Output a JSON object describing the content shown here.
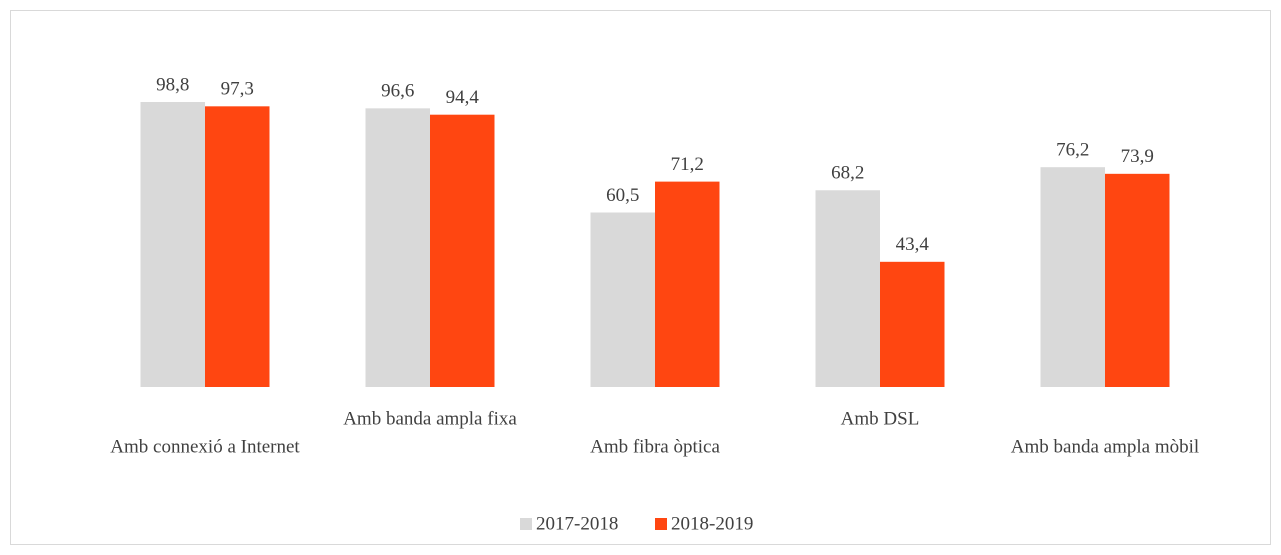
{
  "chart_data": {
    "type": "bar",
    "categories": [
      "Amb connexió a Internet",
      "Amb banda ampla fixa",
      "Amb fibra òptica",
      "Amb DSL",
      "Amb banda ampla mòbil"
    ],
    "series": [
      {
        "name": "2017-2018",
        "color": "#d9d9d9",
        "values": [
          98.8,
          96.6,
          60.5,
          68.2,
          76.2
        ],
        "value_labels": [
          "98,8",
          "96,6",
          "60,5",
          "68,2",
          "76,2"
        ]
      },
      {
        "name": "2018-2019",
        "color": "#ff4611",
        "values": [
          97.3,
          94.4,
          71.2,
          43.4,
          73.9
        ],
        "value_labels": [
          "97,3",
          "94,4",
          "71,2",
          "43,4",
          "73,9"
        ]
      }
    ],
    "legend": "bottom"
  }
}
